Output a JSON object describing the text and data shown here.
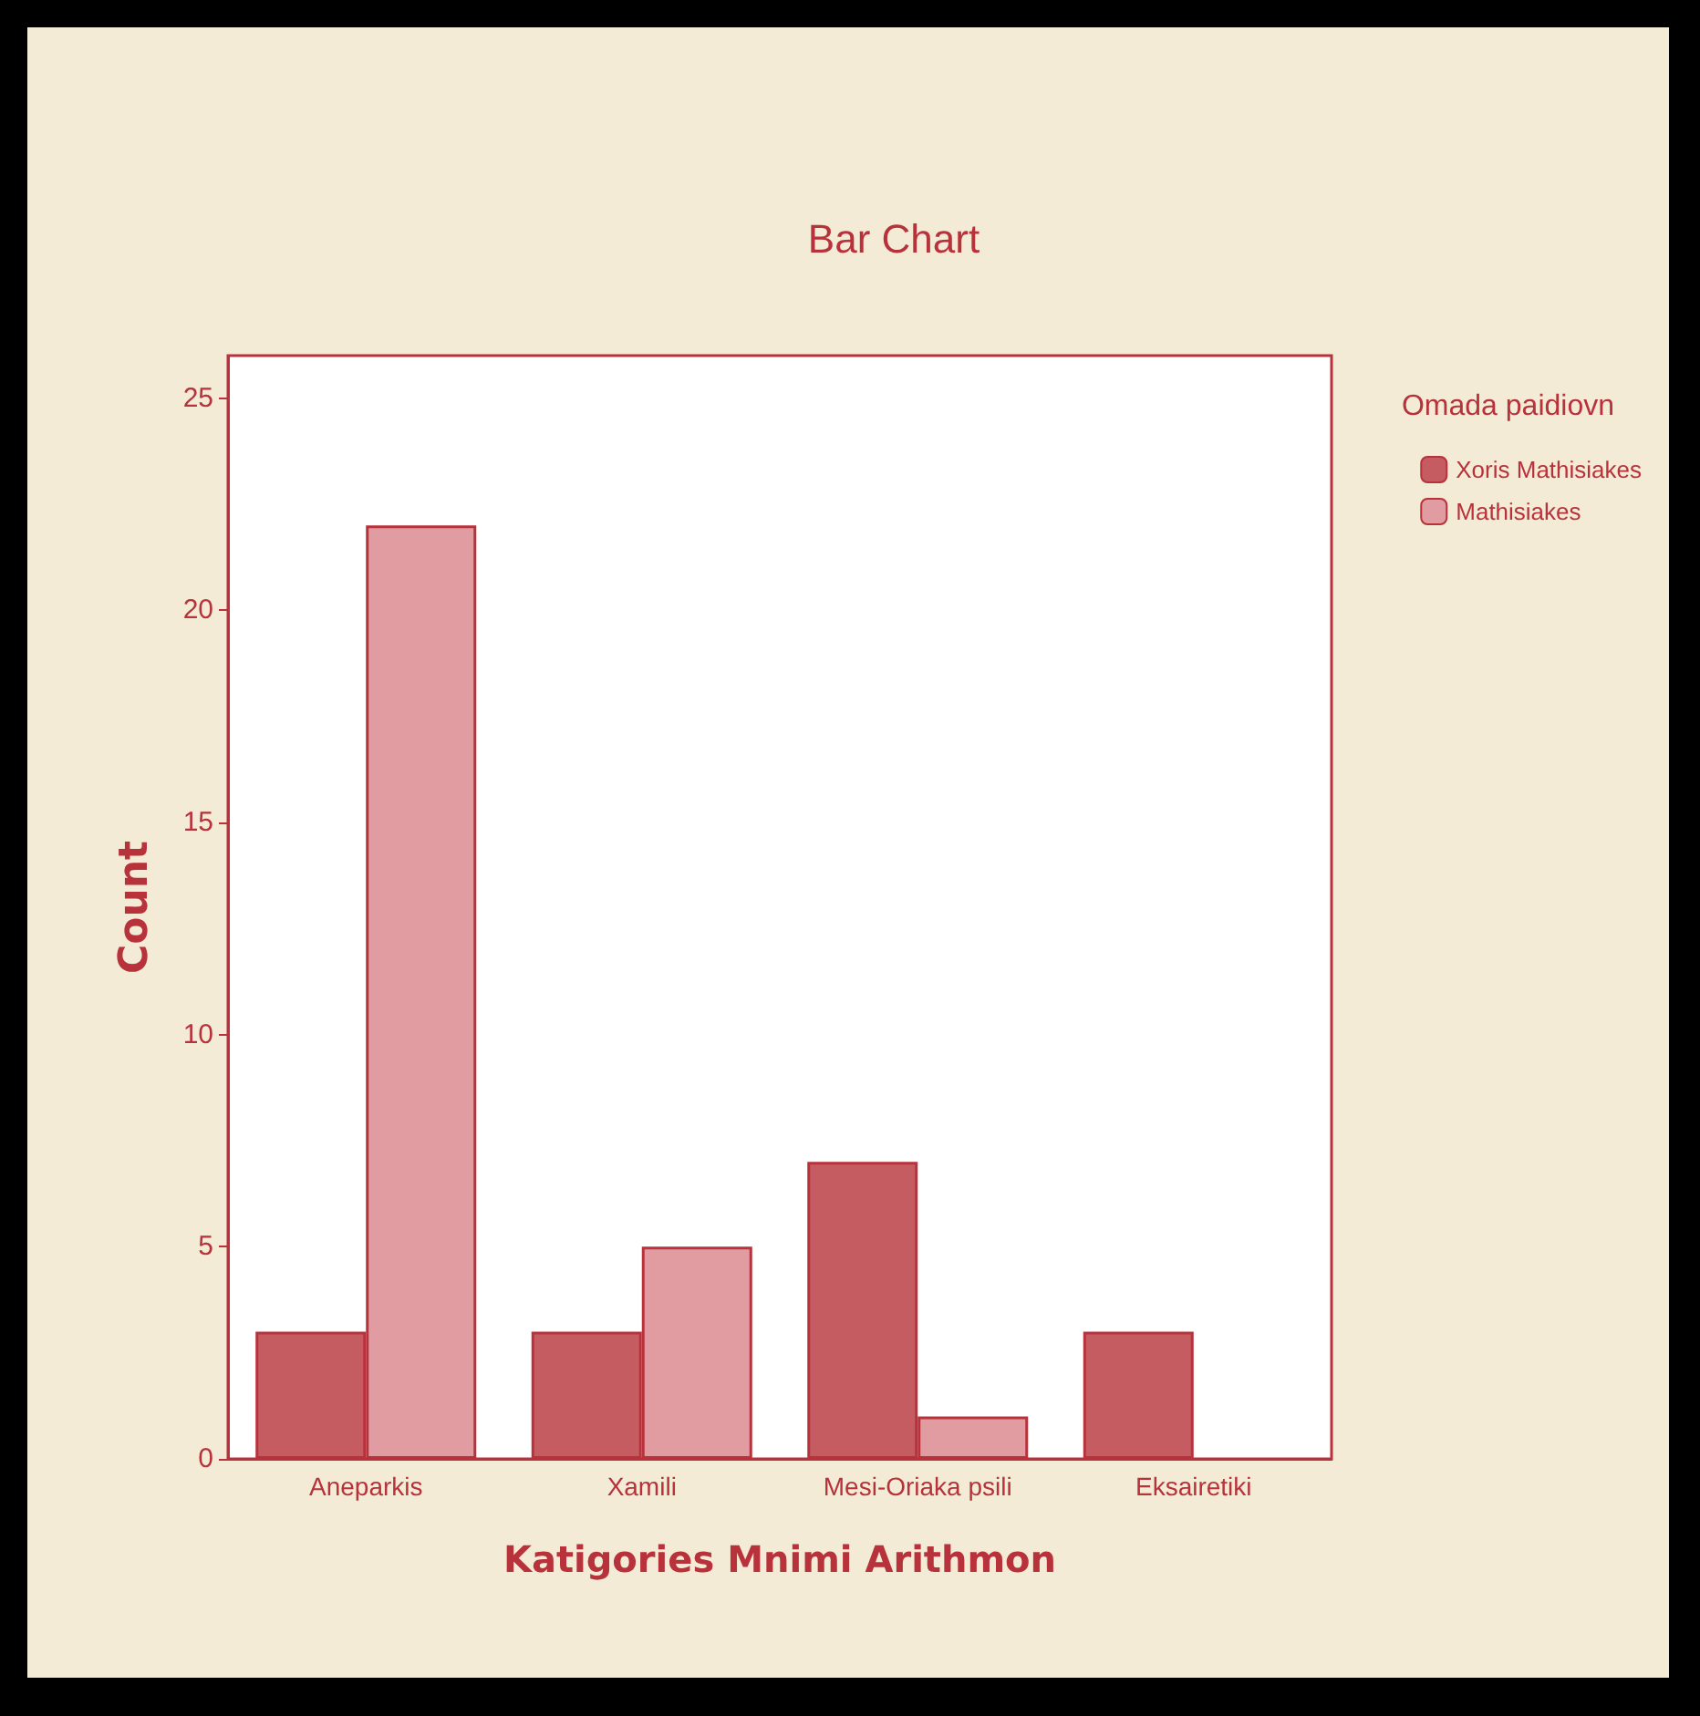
{
  "chart_data": {
    "type": "bar",
    "title": "Bar Chart",
    "xlabel": "Katigories Mnimi Arithmon",
    "ylabel": "Count",
    "legend_title": "Omada paidiovn",
    "categories": [
      "Aneparkis",
      "Xamili",
      "Mesi-Oriaka psili",
      "Eksairetiki"
    ],
    "series": [
      {
        "name": "Xoris Mathisiakes",
        "color": "#c45c62",
        "values": [
          3,
          3,
          7,
          3
        ]
      },
      {
        "name": "Mathisiakes",
        "color": "#e09ca0",
        "values": [
          22,
          5,
          1,
          null
        ]
      }
    ],
    "ylim": [
      0,
      26
    ],
    "yticks": [
      0,
      5,
      10,
      15,
      20,
      25
    ],
    "grid": false,
    "legend": "right"
  }
}
